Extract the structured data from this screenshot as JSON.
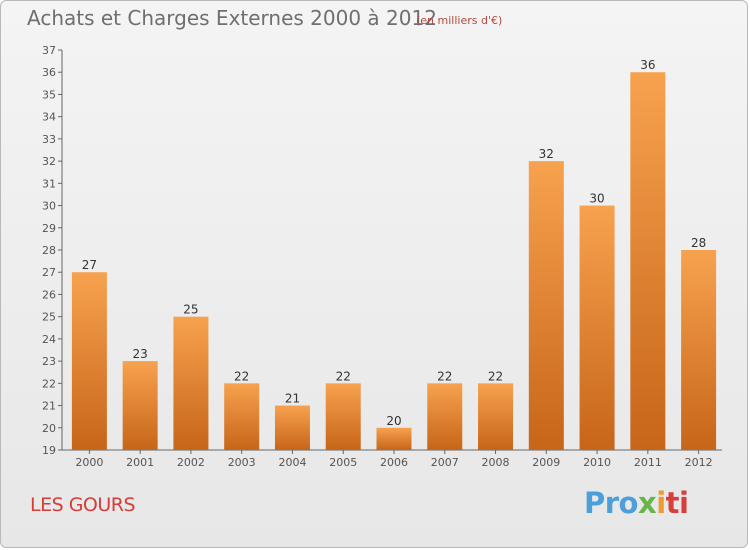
{
  "chart_data": {
    "type": "bar",
    "title": "Achats et Charges Externes 2000 à 2012",
    "subtitle": "(en milliers d'€)",
    "categories": [
      "2000",
      "2001",
      "2002",
      "2003",
      "2004",
      "2005",
      "2006",
      "2007",
      "2008",
      "2009",
      "2010",
      "2011",
      "2012"
    ],
    "values": [
      27,
      23,
      25,
      22,
      21,
      22,
      20,
      22,
      22,
      32,
      30,
      36,
      28
    ],
    "ylim": [
      19,
      37
    ],
    "yticks": [
      19,
      20,
      21,
      22,
      23,
      24,
      25,
      26,
      27,
      28,
      29,
      30,
      31,
      32,
      33,
      34,
      35,
      36,
      37
    ],
    "xlabel": "",
    "ylabel": "",
    "grid": false,
    "bar_color_top": "#f7a24f",
    "bar_color_bottom": "#c76518"
  },
  "footer": {
    "commune": "LES GOURS",
    "brand_parts": [
      "Pro",
      "x",
      "i",
      "ti"
    ]
  },
  "colors": {
    "title": "#6f6f6f",
    "subtitle": "#b24a3f",
    "commune": "#d73c39"
  }
}
